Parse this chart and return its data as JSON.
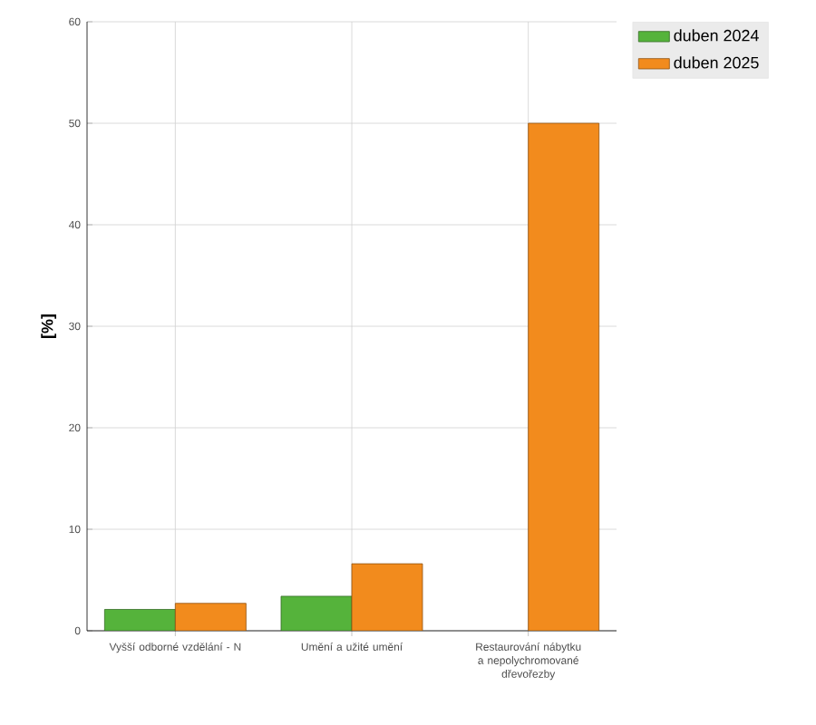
{
  "chart_data": {
    "type": "bar",
    "ylabel": "[%]",
    "categories": [
      "Vyšší odborné vzdělání - N",
      "Umění a užité umění",
      "Restaurování nábytku a nepolychromované dřevořezby"
    ],
    "series": [
      {
        "name": "duben 2024",
        "color": "#55b33b",
        "values": [
          2.1,
          3.4,
          null
        ]
      },
      {
        "name": "duben 2025",
        "color": "#f28b1d",
        "values": [
          2.7,
          6.6,
          50
        ]
      }
    ],
    "ylim": [
      0,
      60
    ],
    "yticks": [
      0,
      10,
      20,
      30,
      40,
      50,
      60
    ],
    "grid": true,
    "legend": "top right"
  }
}
